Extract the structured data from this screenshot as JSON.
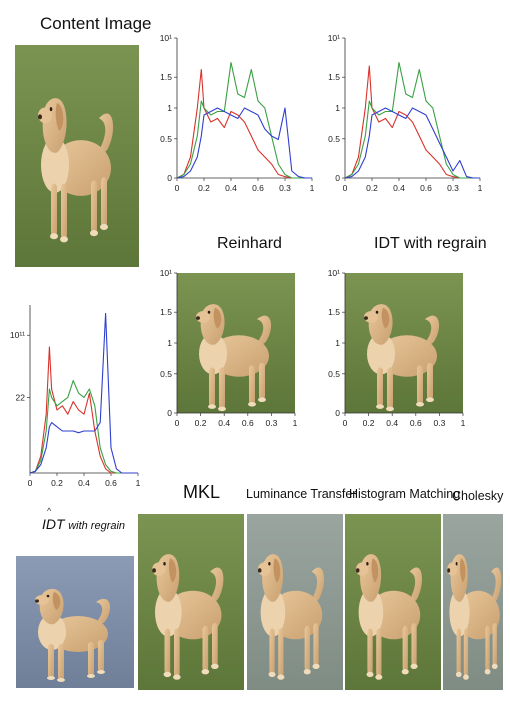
{
  "captions": {
    "content": "Content Image",
    "reinhard": "Reinhard",
    "idt_regrain_top": "IDT with regrain",
    "idt_regrain_bottom_a": "IDT",
    "idt_regrain_bottom_b": "with regrain",
    "mkl": "MKL",
    "luminance": "Luminance Transfer",
    "histmatch": "Histogram Matching",
    "cholesky": "Cholesky"
  },
  "axes": {
    "x_ticks": [
      "0",
      "0.2",
      "0.4",
      "0.6",
      "0.3",
      "1"
    ],
    "x_ticks_left": [
      "0",
      "0.2",
      "0.4",
      "0.6",
      "1"
    ],
    "y_ticks_top": [
      "10¹",
      "1.5",
      "1",
      "0.5",
      "0"
    ],
    "y_ticks_left": [
      "10¹¹",
      "22"
    ]
  },
  "colors": {
    "red": "#d9322a",
    "green": "#3aa043",
    "blue": "#2f3fcf",
    "grass": "#6f8a49",
    "grass_dark": "#5a7238",
    "dog": "#dcb685",
    "dog_dark": "#b98a56",
    "dog_light": "#f0dcbb"
  },
  "chart_data": [
    {
      "type": "line",
      "x": [
        0,
        0.05,
        0.1,
        0.15,
        0.18,
        0.2,
        0.25,
        0.3,
        0.35,
        0.4,
        0.45,
        0.5,
        0.55,
        0.6,
        0.65,
        0.7,
        0.75,
        0.8,
        0.85,
        0.9,
        0.95,
        1
      ],
      "series": [
        {
          "color": "red",
          "values": [
            0,
            0.05,
            0.3,
            1.0,
            1.55,
            1.0,
            0.8,
            0.85,
            0.72,
            0.95,
            0.9,
            0.8,
            0.6,
            0.4,
            0.3,
            0.2,
            0.05,
            0.02,
            0,
            0,
            0,
            0
          ]
        },
        {
          "color": "green",
          "values": [
            0,
            0.05,
            0.2,
            0.6,
            1.1,
            1.0,
            0.9,
            0.95,
            0.95,
            1.65,
            1.2,
            1.15,
            1.55,
            1.1,
            1.0,
            0.6,
            0.2,
            0.05,
            0,
            0,
            0,
            0
          ]
        },
        {
          "color": "blue",
          "values": [
            0,
            0.02,
            0.1,
            0.3,
            0.6,
            0.9,
            0.95,
            1.0,
            0.95,
            0.9,
            0.85,
            1.0,
            0.95,
            0.9,
            0.7,
            0.6,
            0.55,
            1.0,
            0.1,
            0.02,
            0,
            0
          ]
        }
      ],
      "xlim": [
        0,
        1
      ],
      "ylim": [
        0,
        2
      ]
    },
    {
      "type": "line",
      "x": [
        0,
        0.05,
        0.1,
        0.15,
        0.18,
        0.2,
        0.25,
        0.3,
        0.35,
        0.4,
        0.45,
        0.5,
        0.55,
        0.6,
        0.65,
        0.7,
        0.75,
        0.8,
        0.85,
        0.9,
        0.95,
        1
      ],
      "series": [
        {
          "color": "red",
          "values": [
            0,
            0.05,
            0.3,
            1.0,
            1.6,
            1.0,
            0.8,
            0.85,
            0.72,
            0.95,
            0.9,
            0.8,
            0.6,
            0.4,
            0.3,
            0.2,
            0.05,
            0.02,
            0,
            0,
            0,
            0
          ]
        },
        {
          "color": "green",
          "values": [
            0,
            0.05,
            0.2,
            0.6,
            1.1,
            1.0,
            0.9,
            0.95,
            0.95,
            1.65,
            1.2,
            1.15,
            1.55,
            1.1,
            1.0,
            0.6,
            0.2,
            0.05,
            0,
            0,
            0,
            0
          ]
        },
        {
          "color": "blue",
          "values": [
            0,
            0.02,
            0.1,
            0.3,
            0.6,
            0.9,
            0.95,
            1.0,
            0.95,
            0.9,
            0.85,
            1.0,
            0.95,
            0.9,
            0.7,
            0.5,
            0.3,
            0.1,
            0.25,
            0.02,
            0,
            0
          ]
        }
      ],
      "xlim": [
        0,
        1
      ],
      "ylim": [
        0,
        2
      ]
    },
    {
      "type": "line",
      "x": [
        0,
        0.05,
        0.1,
        0.15,
        0.18,
        0.2,
        0.25,
        0.3,
        0.35,
        0.4,
        0.45,
        0.5,
        0.55,
        0.6,
        0.65,
        0.7,
        0.75,
        0.8,
        0.85,
        0.9,
        0.95,
        1
      ],
      "series": [
        {
          "color": "red",
          "values": [
            0,
            0.02,
            0.2,
            0.7,
            1.5,
            1.0,
            0.75,
            0.8,
            0.7,
            0.85,
            0.75,
            0.7,
            0.95,
            0.5,
            0.2,
            0.05,
            0,
            0,
            0,
            0,
            0,
            0
          ]
        },
        {
          "color": "green",
          "values": [
            0,
            0.02,
            0.15,
            0.5,
            1.0,
            0.9,
            0.8,
            0.85,
            0.9,
            1.1,
            0.95,
            0.9,
            1.0,
            0.8,
            0.3,
            0.1,
            0.02,
            0,
            0,
            0,
            0,
            0
          ]
        },
        {
          "color": "blue",
          "values": [
            0,
            0.02,
            0.1,
            0.3,
            0.55,
            0.6,
            0.55,
            0.5,
            0.5,
            0.5,
            0.48,
            0.5,
            0.5,
            0.5,
            0.6,
            1.9,
            0.3,
            0.05,
            0,
            0,
            0,
            0
          ]
        }
      ],
      "xlim": [
        0,
        1
      ],
      "ylim": [
        0,
        2
      ]
    }
  ]
}
